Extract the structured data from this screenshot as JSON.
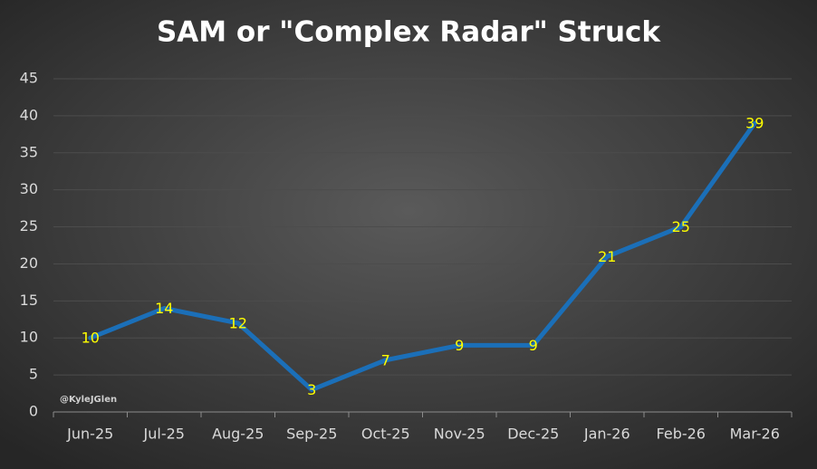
{
  "chart_data": {
    "type": "line",
    "title": "SAM or \"Complex Radar\" Struck",
    "categories": [
      "Jun-25",
      "Jul-25",
      "Aug-25",
      "Sep-25",
      "Oct-25",
      "Nov-25",
      "Dec-25",
      "Jan-26",
      "Feb-26",
      "Mar-26"
    ],
    "values": [
      10,
      14,
      12,
      3,
      7,
      9,
      9,
      21,
      25,
      39
    ],
    "color": "#1b6fb8",
    "label_color": "#ffff00",
    "ylim": [
      0,
      45
    ],
    "yticks": [
      0,
      5,
      10,
      15,
      20,
      25,
      30,
      35,
      40,
      45
    ],
    "grid": true,
    "annotation": "@KyleJGlen"
  }
}
